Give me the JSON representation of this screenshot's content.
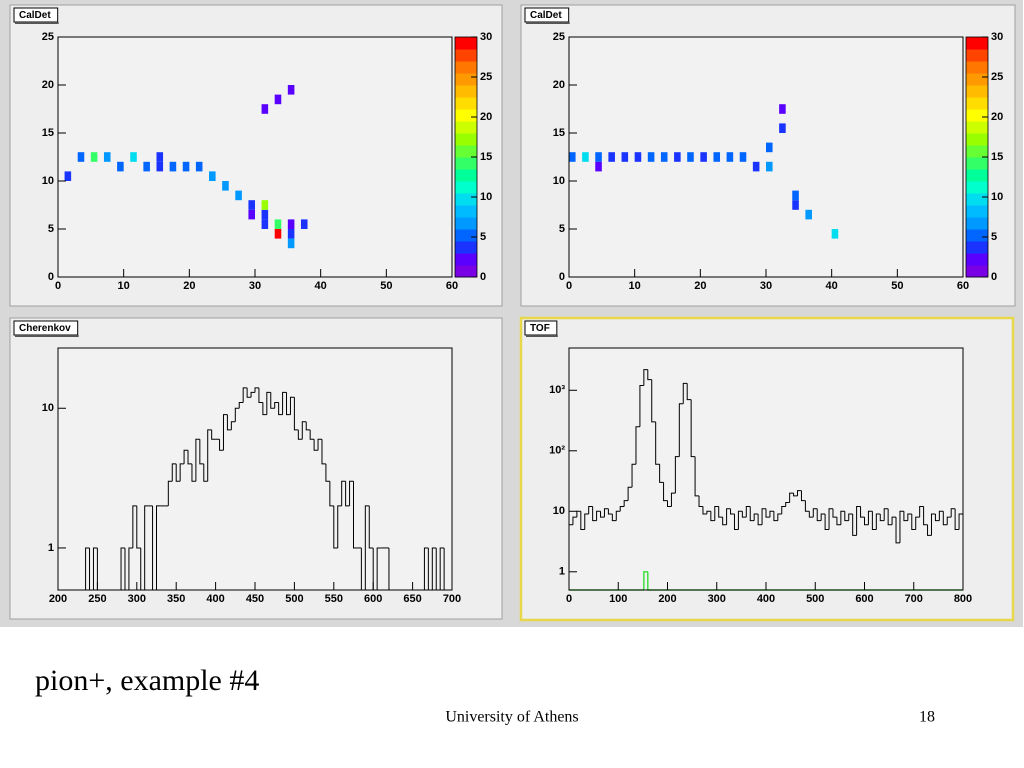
{
  "slide": {
    "title": "pion+, example #4",
    "footer": "University of Athens",
    "page_number": "18"
  },
  "chart_data": [
    {
      "type": "heatmap",
      "title": "CalDet",
      "xlim": [
        0,
        60
      ],
      "xticks": [
        0,
        10,
        20,
        30,
        40,
        50,
        60
      ],
      "ylim": [
        0,
        25
      ],
      "yticks": [
        0,
        5,
        10,
        15,
        20,
        25
      ],
      "zlim": [
        0,
        30
      ],
      "zticks": [
        0,
        5,
        10,
        15,
        20,
        25,
        30
      ],
      "palette": [
        "#7a00e6",
        "#5a00ff",
        "#1a33ff",
        "#0066ff",
        "#0099ff",
        "#00bbff",
        "#00ddee",
        "#00ffcc",
        "#00ff99",
        "#33ff66",
        "#66ff33",
        "#99ff00",
        "#ccff00",
        "#ffff00",
        "#ffdd00",
        "#ffbb00",
        "#ff9900",
        "#ff7700",
        "#ff4400",
        "#ff0000"
      ],
      "x": [
        1,
        3,
        5,
        7,
        9,
        11,
        13,
        15,
        15,
        17,
        19,
        21,
        23,
        25,
        27,
        29,
        29,
        31,
        31,
        31,
        33,
        33,
        35,
        35,
        35,
        37,
        31,
        33,
        35
      ],
      "y": [
        10,
        12,
        12,
        12,
        11,
        12,
        11,
        11,
        12,
        11,
        11,
        11,
        10,
        9,
        8,
        6,
        7,
        5,
        6,
        7,
        5,
        4,
        5,
        4,
        3,
        5,
        17,
        18,
        19
      ],
      "values": [
        3,
        5,
        14,
        7,
        5,
        10,
        5,
        4,
        4,
        5,
        5,
        5,
        7,
        7,
        6,
        2,
        3,
        3,
        3,
        17,
        14,
        29,
        2,
        3,
        7,
        3,
        2,
        2,
        2
      ]
    },
    {
      "type": "heatmap",
      "title": "CalDet",
      "xlim": [
        0,
        60
      ],
      "xticks": [
        0,
        10,
        20,
        30,
        40,
        50,
        60
      ],
      "ylim": [
        0,
        25
      ],
      "yticks": [
        0,
        5,
        10,
        15,
        20,
        25
      ],
      "zlim": [
        0,
        30
      ],
      "zticks": [
        0,
        5,
        10,
        15,
        20,
        25,
        30
      ],
      "palette": [
        "#7a00e6",
        "#5a00ff",
        "#1a33ff",
        "#0066ff",
        "#0099ff",
        "#00bbff",
        "#00ddee",
        "#00ffcc",
        "#00ff99",
        "#33ff66",
        "#66ff33",
        "#99ff00",
        "#ccff00",
        "#ffff00",
        "#ffdd00",
        "#ffbb00",
        "#ff9900",
        "#ff7700",
        "#ff4400",
        "#ff0000"
      ],
      "x": [
        0,
        2,
        4,
        4,
        6,
        8,
        10,
        12,
        14,
        16,
        18,
        20,
        22,
        24,
        26,
        28,
        30,
        30,
        32,
        32,
        34,
        34,
        36,
        40
      ],
      "y": [
        12,
        12,
        12,
        11,
        12,
        12,
        12,
        12,
        12,
        12,
        12,
        12,
        12,
        12,
        12,
        11,
        11,
        13,
        15,
        17,
        7,
        8,
        6,
        4
      ],
      "values": [
        5,
        9,
        5,
        2,
        3,
        4,
        4,
        5,
        5,
        4,
        5,
        4,
        5,
        5,
        5,
        3,
        6,
        5,
        3,
        2,
        4,
        5,
        7,
        9
      ]
    },
    {
      "type": "histogram",
      "title": "Cherenkov",
      "log_y": true,
      "xlim": [
        200,
        700
      ],
      "xticks": [
        200,
        250,
        300,
        350,
        400,
        450,
        500,
        550,
        600,
        650,
        700
      ],
      "ylim": [
        0.5,
        27
      ],
      "yticks": [
        1,
        10
      ],
      "bins": [
        200,
        205,
        210,
        215,
        220,
        225,
        230,
        235,
        240,
        245,
        250,
        255,
        260,
        265,
        270,
        275,
        280,
        285,
        290,
        295,
        300,
        305,
        310,
        315,
        320,
        325,
        330,
        335,
        340,
        345,
        350,
        355,
        360,
        365,
        370,
        375,
        380,
        385,
        390,
        395,
        400,
        405,
        410,
        415,
        420,
        425,
        430,
        435,
        440,
        445,
        450,
        455,
        460,
        465,
        470,
        475,
        480,
        485,
        490,
        495,
        500,
        505,
        510,
        515,
        520,
        525,
        530,
        535,
        540,
        545,
        550,
        555,
        560,
        565,
        570,
        575,
        580,
        585,
        590,
        595,
        600,
        605,
        610,
        615,
        620,
        625,
        630,
        635,
        640,
        645,
        650,
        655,
        660,
        665,
        670,
        675,
        680,
        685,
        690,
        695,
        700
      ],
      "series": [
        {
          "color": "#000000",
          "values": [
            0,
            0,
            0,
            0,
            0,
            0,
            0,
            1,
            0,
            1,
            0,
            0,
            0,
            0,
            0,
            0,
            1,
            0,
            1,
            2,
            1,
            0,
            2,
            2,
            0,
            2,
            2,
            2,
            3,
            4,
            3,
            4,
            5,
            4,
            3,
            6,
            4,
            3,
            7,
            6,
            6,
            5,
            9,
            7,
            8,
            10,
            11,
            14,
            12,
            13,
            14,
            11,
            9,
            13,
            10,
            11,
            9,
            13,
            9,
            12,
            7,
            6,
            8,
            7,
            6,
            5,
            6,
            4,
            3,
            2,
            1,
            2,
            3,
            2,
            3,
            1,
            1,
            0,
            2,
            1,
            0,
            1,
            1,
            1,
            0,
            0,
            0,
            0,
            0,
            0,
            0,
            0,
            0,
            1,
            0,
            1,
            0,
            1,
            0,
            0
          ]
        }
      ]
    },
    {
      "type": "histogram",
      "title": "TOF",
      "log_y": true,
      "xlim": [
        0,
        800
      ],
      "xticks": [
        0,
        100,
        200,
        300,
        400,
        500,
        600,
        700,
        800
      ],
      "ylim": [
        0.5,
        5000
      ],
      "yticks": [
        1,
        10,
        {
          "value": 100,
          "label": "10²"
        },
        {
          "value": 1000,
          "label": "10³"
        }
      ],
      "bins": [
        0,
        8,
        16,
        24,
        32,
        40,
        48,
        56,
        64,
        72,
        80,
        88,
        96,
        104,
        112,
        120,
        128,
        136,
        144,
        152,
        160,
        168,
        176,
        184,
        192,
        200,
        208,
        216,
        224,
        232,
        240,
        248,
        256,
        264,
        272,
        280,
        288,
        296,
        304,
        312,
        320,
        328,
        336,
        344,
        352,
        360,
        368,
        376,
        384,
        392,
        400,
        408,
        416,
        424,
        432,
        440,
        448,
        456,
        464,
        472,
        480,
        488,
        496,
        504,
        512,
        520,
        528,
        536,
        544,
        552,
        560,
        568,
        576,
        584,
        592,
        600,
        608,
        616,
        624,
        632,
        640,
        648,
        656,
        664,
        672,
        680,
        688,
        696,
        704,
        712,
        720,
        728,
        736,
        744,
        752,
        760,
        768,
        776,
        784,
        792,
        800
      ],
      "series": [
        {
          "color": "#000000",
          "values": [
            6,
            8,
            10,
            5,
            9,
            12,
            7,
            10,
            8,
            11,
            9,
            7,
            10,
            12,
            15,
            25,
            60,
            250,
            1200,
            2200,
            1500,
            300,
            60,
            30,
            15,
            12,
            20,
            80,
            600,
            1300,
            700,
            80,
            18,
            12,
            9,
            10,
            7,
            12,
            8,
            6,
            11,
            9,
            5,
            10,
            8,
            12,
            7,
            9,
            6,
            11,
            8,
            10,
            7,
            9,
            12,
            14,
            20,
            18,
            22,
            15,
            10,
            8,
            11,
            7,
            9,
            5,
            11,
            8,
            6,
            10,
            7,
            9,
            4,
            12,
            8,
            6,
            10,
            5,
            9,
            7,
            11,
            6,
            8,
            3,
            10,
            7,
            9,
            5,
            8,
            12,
            6,
            4,
            9,
            7,
            10,
            6,
            8,
            11,
            5,
            9
          ]
        },
        {
          "color": "#33dd33",
          "values": [
            0,
            0,
            0,
            0,
            0,
            0,
            0,
            0,
            0,
            0,
            0,
            0,
            0,
            0,
            0,
            0,
            0,
            0,
            0,
            1,
            0,
            0,
            0,
            0,
            0,
            0,
            0,
            0,
            0,
            0,
            0,
            0,
            0,
            0,
            0,
            0,
            0,
            0,
            0,
            0,
            0,
            0,
            0,
            0,
            0,
            0,
            0,
            0,
            0,
            0,
            0,
            0,
            0,
            0,
            0,
            0,
            0,
            0,
            0,
            0,
            0,
            0,
            0,
            0,
            0,
            0,
            0,
            0,
            0,
            0,
            0,
            0,
            0,
            0,
            0,
            0,
            0,
            0,
            0,
            0,
            0,
            0,
            0,
            0,
            0,
            0,
            0,
            0,
            0,
            0,
            0,
            0,
            0,
            0,
            0,
            0,
            0,
            0,
            0,
            0
          ]
        }
      ]
    }
  ]
}
